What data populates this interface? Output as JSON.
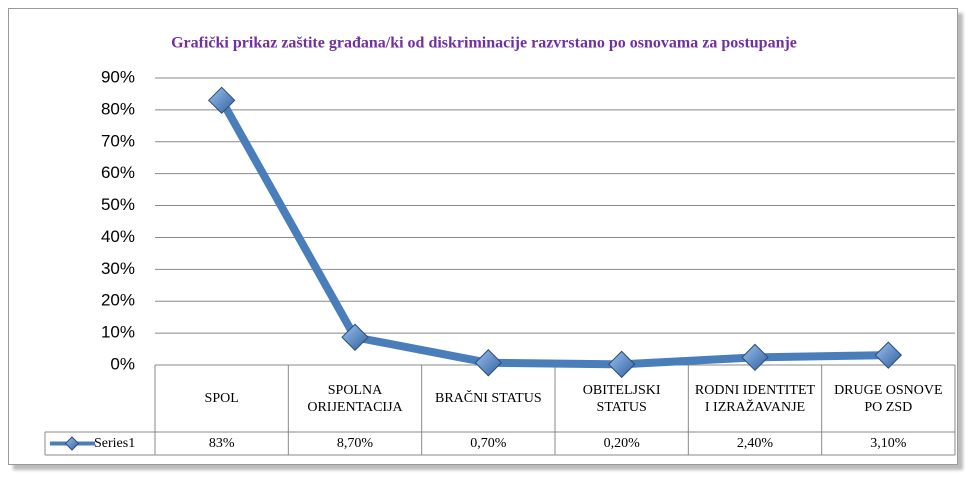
{
  "chart_data": {
    "type": "line",
    "title": "Grafički prikaz zaštite građana/ki od diskriminacije razvrstano po osnovama za postupanje",
    "categories": [
      "SPOL",
      "SPOLNA ORIJENTACIJA",
      "BRAČNI STATUS",
      "OBITELJSKI STATUS",
      "RODNI IDENTITET I IZRAŽAVANJE",
      "DRUGE OSNOVE PO ZSD"
    ],
    "series": [
      {
        "name": "Series1",
        "color": "#4a7ebb",
        "values": [
          83,
          8.7,
          0.7,
          0.2,
          2.4,
          3.1
        ],
        "value_labels": [
          "83%",
          "8,70%",
          "0,70%",
          "0,20%",
          "2,40%",
          "3,10%"
        ]
      }
    ],
    "ylim": [
      0,
      90
    ],
    "yticks": [
      {
        "value": 0,
        "label": "0%"
      },
      {
        "value": 10,
        "label": "10%"
      },
      {
        "value": 20,
        "label": "20%"
      },
      {
        "value": 30,
        "label": "30%"
      },
      {
        "value": 40,
        "label": "40%"
      },
      {
        "value": 50,
        "label": "50%"
      },
      {
        "value": 60,
        "label": "60%"
      },
      {
        "value": 70,
        "label": "70%"
      },
      {
        "value": 80,
        "label": "80%"
      },
      {
        "value": 90,
        "label": "90%"
      }
    ],
    "grid": true
  }
}
